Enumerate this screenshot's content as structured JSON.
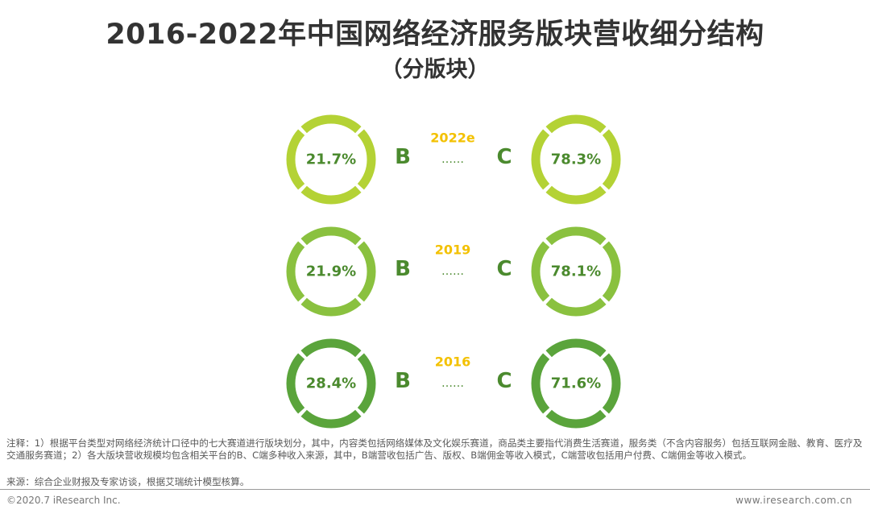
{
  "title": "2016-2022年中国网络经济服务版块营收细分结构",
  "subtitle": "（分版块）",
  "chart_data": {
    "type": "pie",
    "categories": [
      "2022e",
      "2019",
      "2016"
    ],
    "series": [
      {
        "name": "B",
        "values": [
          21.7,
          21.9,
          28.4
        ],
        "labels": [
          "21.7%",
          "21.9%",
          "28.4%"
        ]
      },
      {
        "name": "C",
        "values": [
          78.3,
          78.1,
          71.6
        ],
        "labels": [
          "78.3%",
          "78.1%",
          "71.6%"
        ]
      }
    ],
    "connector": "……",
    "colors": {
      "2022e": "#b4d235",
      "2019": "#8ac13f",
      "2016": "#5aa43b",
      "year_label": "#f3c100"
    }
  },
  "note": "注释：1）根据平台类型对网络经济统计口径中的七大赛道进行版块划分，其中，内容类包括网络媒体及文化娱乐赛道，商品类主要指代消费生活赛道，服务类（不含内容服务）包括互联网金融、教育、医疗及交通服务赛道；2）各大版块营收规模均包含相关平台的B、C端多种收入来源，其中，B端营收包括广告、版权、B端佣金等收入模式，C端营收包括用户付费、C端佣金等收入模式。",
  "source": "来源：综合企业财报及专家访谈，根据艾瑞统计模型核算。",
  "footer": {
    "copyright": "©2020.7 iResearch Inc.",
    "website": "www.iresearch.com.cn"
  }
}
